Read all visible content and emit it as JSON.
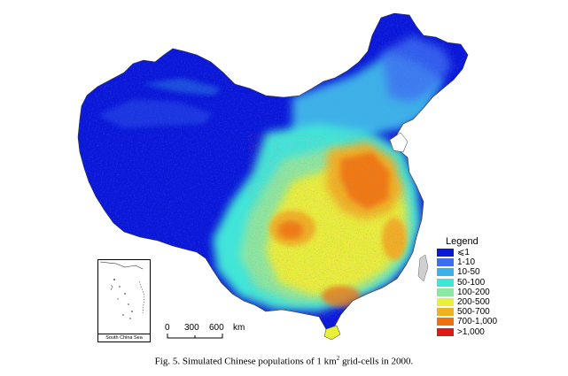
{
  "map": {
    "subject": "China population density grid",
    "colors": {
      "le1": "#0a17d8",
      "1_10": "#3d6ef0",
      "10_50": "#3cb0e8",
      "50_100": "#3fe6d8",
      "100_200": "#8ae8a0",
      "200_500": "#e8f03a",
      "500_700": "#f0b020",
      "700_1000": "#f07010",
      "gt1000": "#e01818",
      "border": "#555555"
    }
  },
  "legend": {
    "title": "Legend",
    "items": [
      {
        "label": "⩽1",
        "color": "#0a17d8"
      },
      {
        "label": "1-10",
        "color": "#3d6ef0"
      },
      {
        "label": "10-50",
        "color": "#3cb0e8"
      },
      {
        "label": "50-100",
        "color": "#3fe6d8"
      },
      {
        "label": "100-200",
        "color": "#8ae8a0"
      },
      {
        "label": "200-500",
        "color": "#e8f03a"
      },
      {
        "label": "500-700",
        "color": "#f0b020"
      },
      {
        "label": "700-1,000",
        "color": "#f07010"
      },
      {
        "label": ">1,000",
        "color": "#e01818"
      }
    ]
  },
  "scalebar": {
    "ticks": [
      "0",
      "300",
      "600"
    ],
    "unit": "km"
  },
  "inset": {
    "label": "South China Sea"
  },
  "caption": {
    "prefix": "Fig. 5.  Simulated Chinese populations of 1 km",
    "superscript": "2",
    "suffix": " grid-cells in 2000."
  }
}
